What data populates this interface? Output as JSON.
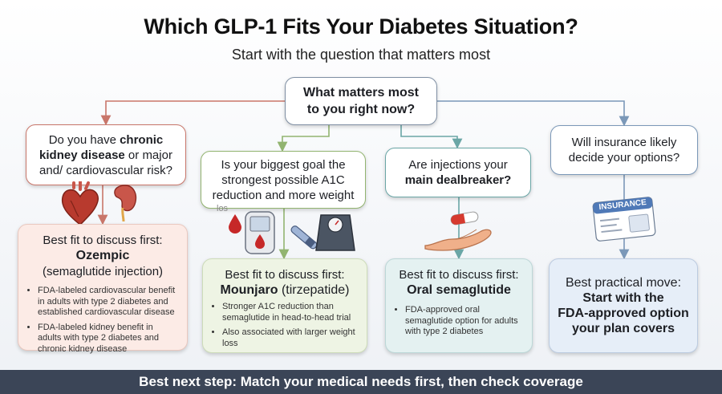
{
  "title": "Which GLP-1 Fits Your Diabetes Situation?",
  "subtitle": "Start with the question that matters most",
  "root_question": {
    "line1": "What matters most",
    "line2": "to you right now?"
  },
  "branches": [
    {
      "question": {
        "l1_pre": "Do you have ",
        "l1_bold": "chronic",
        "l2_bold": "kidney disease",
        "l2_post": " or major",
        "l3": "and/ cardiovascular risk?"
      },
      "answer": {
        "heading": "Best fit to discuss first:",
        "drug": "Ozempic",
        "drug_note": "(semaglutide injection)",
        "bullets": [
          "FDA-labeled cardiovascular benefit in adults with type 2 diabetes and established cardiovascular disease",
          "FDA-labeled kidney benefit in adults with type 2 diabetes and chronic kidney disease"
        ]
      }
    },
    {
      "question": {
        "l1": "Is your biggest goal the",
        "l2": "strongest possible A1C",
        "l3": "reduction and more weight",
        "clipped": "los"
      },
      "answer": {
        "heading": "Best fit to discuss first:",
        "drug": "Mounjaro",
        "drug_note": " (tirzepatide)",
        "bullets": [
          "Stronger A1C reduction than semaglutide in head-to-head trial",
          "Also associated with larger weight loss"
        ]
      }
    },
    {
      "question": {
        "l1": "Are injections your",
        "l2_bold": "main dealbreaker?"
      },
      "answer": {
        "heading": "Best fit to discuss first:",
        "drug": "Oral semaglutide",
        "bullets": [
          "FDA-approved oral semaglutide option for adults with type 2 diabetes"
        ]
      }
    },
    {
      "question": {
        "l1": "Will insurance likely",
        "l2": "decide your options?"
      },
      "answer": {
        "heading": "Best practical move:",
        "line1": "Start with the",
        "line2": "FDA-approved option",
        "line3": "your plan covers"
      },
      "card_label": "INSURANCE"
    }
  ],
  "footer": "Best next step: Match your medical needs first, then check coverage",
  "colors": {
    "kidney_branch": "#c9766a",
    "weight_branch": "#92b470",
    "oral_branch": "#6aa6a6",
    "insurance_branch": "#7b98b8",
    "footer_bg": "#3b4557"
  },
  "icons": [
    "heart-icon",
    "kidney-icon",
    "blood-drop-icon",
    "glucose-meter-icon",
    "injection-pen-icon",
    "scale-icon",
    "pill-icon",
    "open-hand-icon",
    "insurance-card-icon"
  ]
}
